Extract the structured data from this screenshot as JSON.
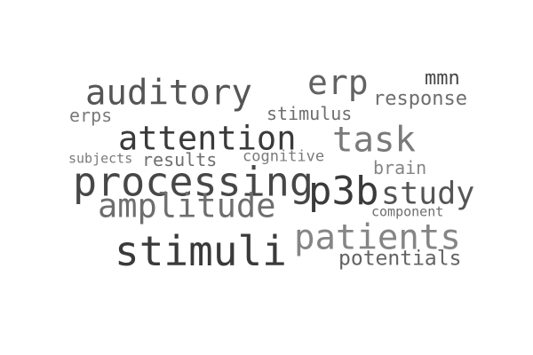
{
  "words": {
    "auditory": "auditory",
    "erp": "erp",
    "mmn": "mmn",
    "response": "response",
    "erps": "erps",
    "stimulus": "stimulus",
    "attention": "attention",
    "task": "task",
    "subjects": "subjects",
    "results": "results",
    "cognitive": "cognitive",
    "brain": "brain",
    "processing": "processing",
    "p3b": "p3b",
    "study": "study",
    "amplitude": "amplitude",
    "component": "component",
    "stimuli": "stimuli",
    "patients": "patients",
    "potentials": "potentials"
  }
}
